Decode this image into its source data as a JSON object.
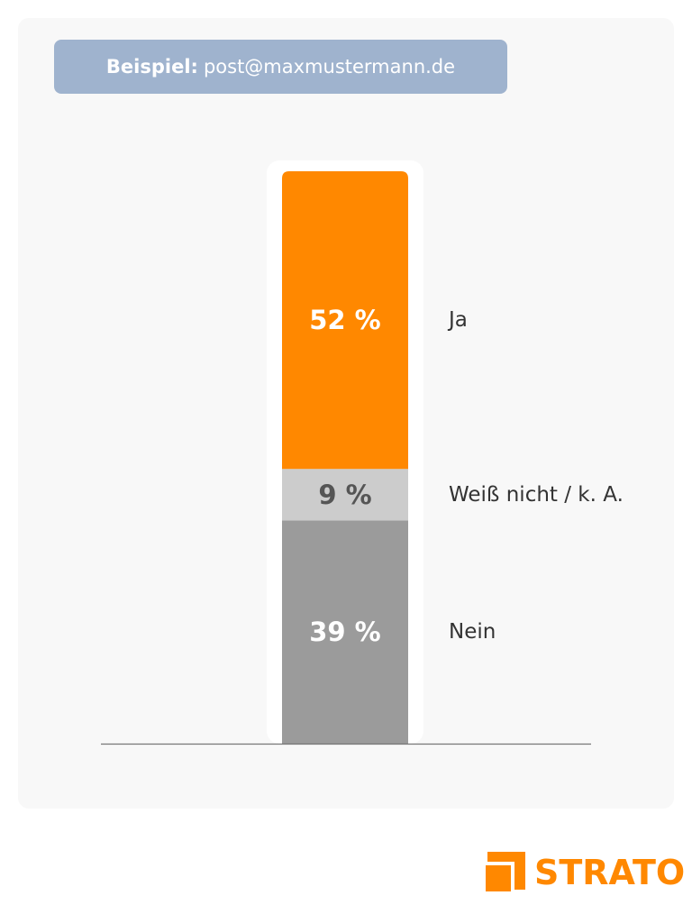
{
  "example": {
    "label": "Beispiel:",
    "value": "post@maxmustermann.de"
  },
  "chart_data": {
    "type": "bar",
    "stacked": true,
    "unit": "%",
    "categories": [
      ""
    ],
    "series": [
      {
        "name": "Nein",
        "values": [
          39
        ],
        "color": "#9b9b9b",
        "value_label": "39 %",
        "value_label_color": "#ffffff"
      },
      {
        "name": "Weiß nicht / k. A.",
        "values": [
          9
        ],
        "color": "#cccccc",
        "value_label": "9 %",
        "value_label_color": "#555555"
      },
      {
        "name": "Ja",
        "values": [
          52
        ],
        "color": "#ff8800",
        "value_label": "52 %",
        "value_label_color": "#ffffff"
      }
    ],
    "ylim": [
      0,
      100
    ],
    "grid": false,
    "legend": "right"
  },
  "brand": {
    "name": "STRATO",
    "color": "#ff8800",
    "icon": "strato-logo-mark-icon"
  }
}
